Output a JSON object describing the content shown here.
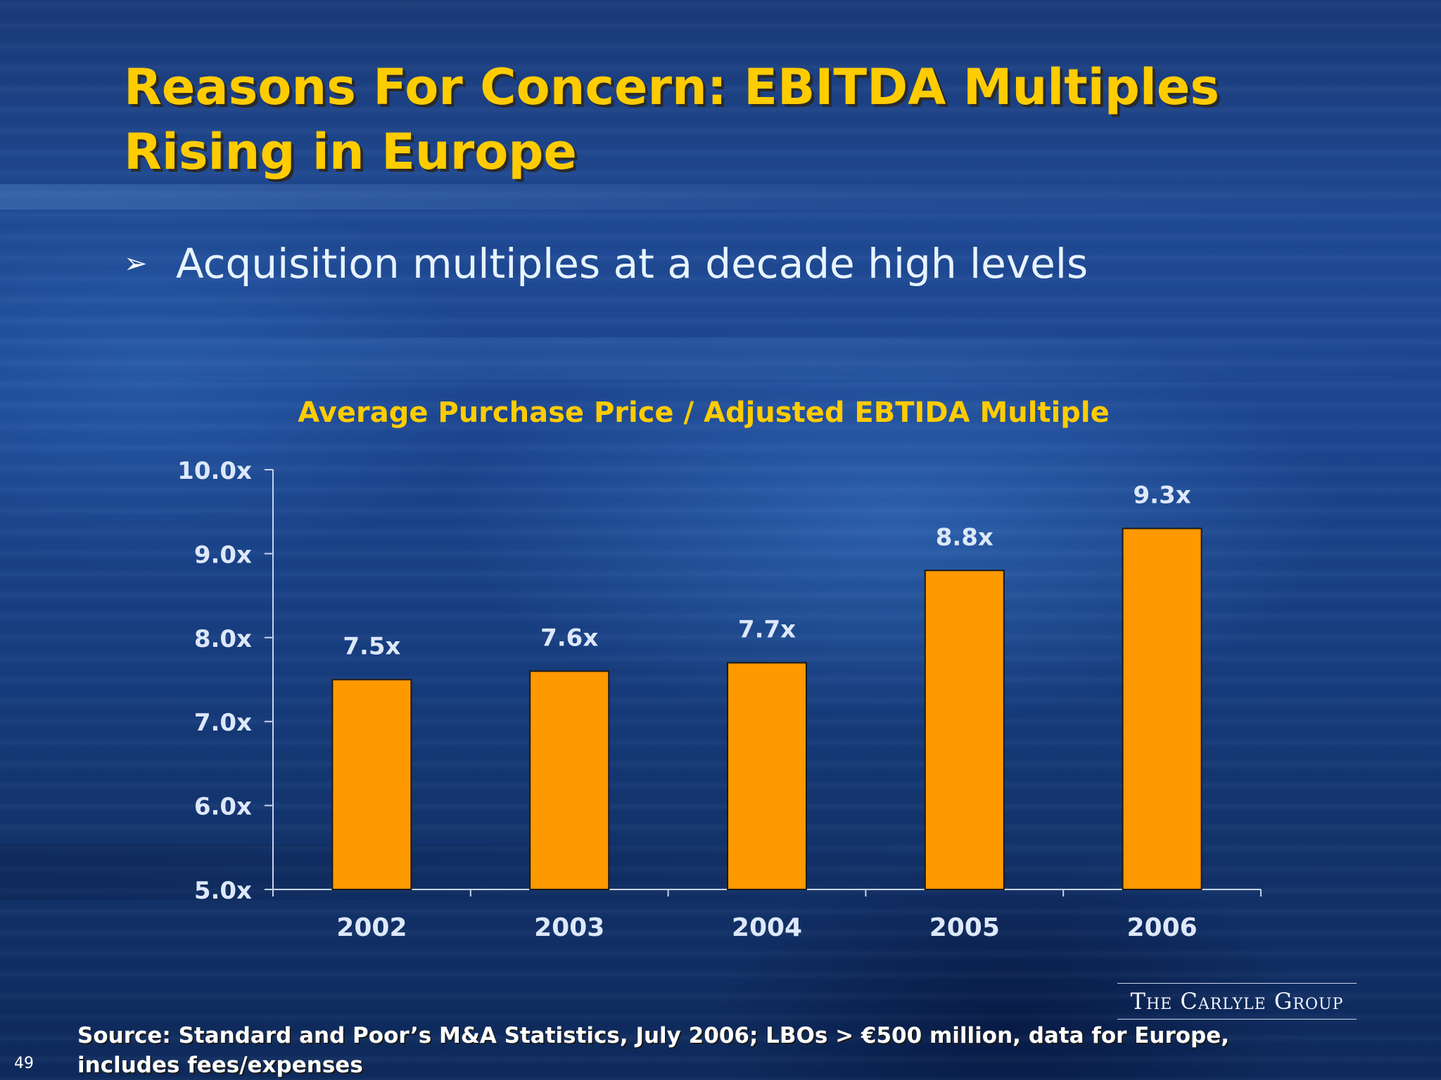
{
  "slide": {
    "title": "Reasons For Concern: EBITDA Multiples Rising in Europe",
    "bullet_icon": "arrowhead-bullet-icon",
    "bullet": "Acquisition multiples at a decade high levels",
    "source": "Source: Standard and Poor’s M&A Statistics, July 2006; LBOs > €500 million, data for Europe, includes fees/expenses",
    "logo_text": "The Carlyle Group",
    "page_number": "49"
  },
  "colors": {
    "title": "#ffcc00",
    "bar_fill": "#ff9900",
    "axis_text": "#dde8fa",
    "data_label": "#dde8fa",
    "axis_line": "#c8d4ea"
  },
  "chart_data": {
    "type": "bar",
    "title": "Average Purchase Price / Adjusted EBTIDA Multiple",
    "categories": [
      "2002",
      "2003",
      "2004",
      "2005",
      "2006"
    ],
    "values": [
      7.5,
      7.6,
      7.7,
      8.8,
      9.3
    ],
    "data_labels": [
      "7.5x",
      "7.6x",
      "7.7x",
      "8.8x",
      "9.3x"
    ],
    "ylim": [
      5.0,
      10.0
    ],
    "yticks": [
      5.0,
      6.0,
      7.0,
      8.0,
      9.0,
      10.0
    ],
    "ytick_labels": [
      "5.0x",
      "6.0x",
      "7.0x",
      "8.0x",
      "9.0x",
      "10.0x"
    ],
    "xlabel": "",
    "ylabel": "",
    "grid": false,
    "legend": "none"
  }
}
